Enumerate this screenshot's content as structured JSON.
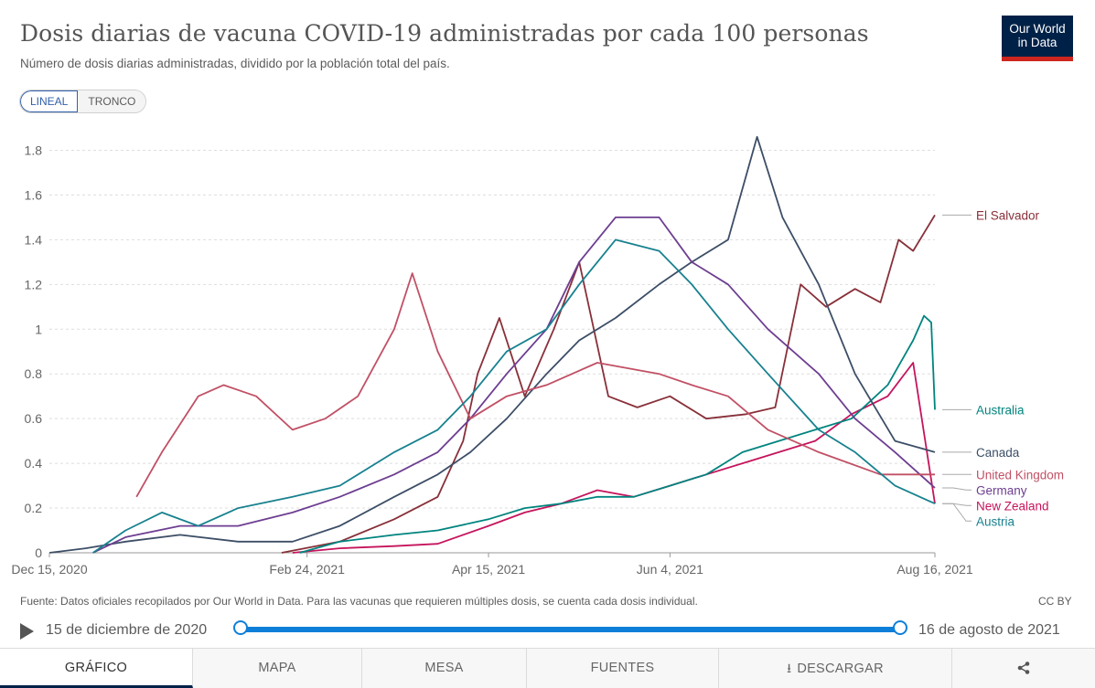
{
  "header": {
    "title": "Dosis diarias de vacuna COVID-19 administradas por cada 100 personas",
    "subtitle": "Número de dosis diarias administradas, dividido por la población total del país.",
    "logo_line1": "Our World",
    "logo_line2": "in Data"
  },
  "controls": {
    "scale_linear": "LINEAL",
    "scale_log": "TRONCO",
    "active_scale": "LINEAL"
  },
  "chart_data": {
    "type": "line",
    "title": "Dosis diarias de vacuna COVID-19 administradas por cada 100 personas",
    "subtitle": "Número de dosis diarias administradas, dividido por la población total del país.",
    "xlabel": "",
    "ylabel": "",
    "x_range": [
      "2020-12-15",
      "2021-08-16"
    ],
    "ylim": [
      0,
      1.9
    ],
    "y_ticks": [
      "0",
      "0.2",
      "0.4",
      "0.6",
      "0.8",
      "1",
      "1.2",
      "1.4",
      "1.6",
      "1.8"
    ],
    "x_ticks": [
      {
        "date": "2020-12-15",
        "label": "Dec 15, 2020"
      },
      {
        "date": "2021-02-24",
        "label": "Feb 24, 2021"
      },
      {
        "date": "2021-04-15",
        "label": "Apr 15, 2021"
      },
      {
        "date": "2021-06-04",
        "label": "Jun 4, 2021"
      },
      {
        "date": "2021-08-16",
        "label": "Aug 16, 2021"
      }
    ],
    "grid": "horizontal dashed",
    "legend_placement": "right, labels at line ends",
    "series": [
      {
        "name": "El Salvador",
        "color": "#883039",
        "points": [
          [
            "2021-02-17",
            0
          ],
          [
            "2021-03-05",
            0.05
          ],
          [
            "2021-03-20",
            0.15
          ],
          [
            "2021-04-01",
            0.25
          ],
          [
            "2021-04-08",
            0.5
          ],
          [
            "2021-04-12",
            0.8
          ],
          [
            "2021-04-18",
            1.05
          ],
          [
            "2021-04-25",
            0.7
          ],
          [
            "2021-05-03",
            1.0
          ],
          [
            "2021-05-10",
            1.3
          ],
          [
            "2021-05-18",
            0.7
          ],
          [
            "2021-05-26",
            0.65
          ],
          [
            "2021-06-04",
            0.7
          ],
          [
            "2021-06-14",
            0.6
          ],
          [
            "2021-06-25",
            0.62
          ],
          [
            "2021-07-03",
            0.65
          ],
          [
            "2021-07-10",
            1.2
          ],
          [
            "2021-07-17",
            1.1
          ],
          [
            "2021-07-25",
            1.18
          ],
          [
            "2021-08-01",
            1.12
          ],
          [
            "2021-08-06",
            1.4
          ],
          [
            "2021-08-10",
            1.35
          ],
          [
            "2021-08-16",
            1.51
          ]
        ],
        "last_value": 1.51
      },
      {
        "name": "New Zealand",
        "color": "#c5145c",
        "points": [
          [
            "2021-02-20",
            0
          ],
          [
            "2021-03-05",
            0.02
          ],
          [
            "2021-03-20",
            0.03
          ],
          [
            "2021-04-01",
            0.04
          ],
          [
            "2021-04-15",
            0.12
          ],
          [
            "2021-04-25",
            0.18
          ],
          [
            "2021-05-05",
            0.22
          ],
          [
            "2021-05-15",
            0.28
          ],
          [
            "2021-05-25",
            0.25
          ],
          [
            "2021-06-04",
            0.3
          ],
          [
            "2021-06-14",
            0.35
          ],
          [
            "2021-06-24",
            0.4
          ],
          [
            "2021-07-04",
            0.45
          ],
          [
            "2021-07-14",
            0.5
          ],
          [
            "2021-07-24",
            0.62
          ],
          [
            "2021-08-03",
            0.7
          ],
          [
            "2021-08-10",
            0.85
          ],
          [
            "2021-08-16",
            0.22
          ]
        ],
        "last_value": 0.22
      },
      {
        "name": "Australia",
        "color": "#00847e",
        "points": [
          [
            "2021-02-22",
            0
          ],
          [
            "2021-03-05",
            0.05
          ],
          [
            "2021-03-20",
            0.08
          ],
          [
            "2021-04-01",
            0.1
          ],
          [
            "2021-04-15",
            0.15
          ],
          [
            "2021-04-25",
            0.2
          ],
          [
            "2021-05-05",
            0.22
          ],
          [
            "2021-05-15",
            0.25
          ],
          [
            "2021-05-25",
            0.25
          ],
          [
            "2021-06-04",
            0.3
          ],
          [
            "2021-06-14",
            0.35
          ],
          [
            "2021-06-24",
            0.45
          ],
          [
            "2021-07-04",
            0.5
          ],
          [
            "2021-07-14",
            0.55
          ],
          [
            "2021-07-24",
            0.6
          ],
          [
            "2021-08-03",
            0.75
          ],
          [
            "2021-08-10",
            0.95
          ],
          [
            "2021-08-13",
            1.06
          ],
          [
            "2021-08-15",
            1.03
          ],
          [
            "2021-08-16",
            0.64
          ]
        ],
        "last_value": 0.64
      },
      {
        "name": "Canada",
        "color": "#3c4e66",
        "points": [
          [
            "2020-12-15",
            0
          ],
          [
            "2020-12-25",
            0.02
          ],
          [
            "2021-01-05",
            0.05
          ],
          [
            "2021-01-20",
            0.08
          ],
          [
            "2021-02-05",
            0.05
          ],
          [
            "2021-02-20",
            0.05
          ],
          [
            "2021-03-05",
            0.12
          ],
          [
            "2021-03-20",
            0.25
          ],
          [
            "2021-04-01",
            0.35
          ],
          [
            "2021-04-10",
            0.45
          ],
          [
            "2021-04-20",
            0.6
          ],
          [
            "2021-05-01",
            0.8
          ],
          [
            "2021-05-10",
            0.95
          ],
          [
            "2021-05-20",
            1.05
          ],
          [
            "2021-06-01",
            1.2
          ],
          [
            "2021-06-10",
            1.3
          ],
          [
            "2021-06-20",
            1.4
          ],
          [
            "2021-06-28",
            1.86
          ],
          [
            "2021-07-05",
            1.5
          ],
          [
            "2021-07-15",
            1.2
          ],
          [
            "2021-07-25",
            0.8
          ],
          [
            "2021-08-05",
            0.5
          ],
          [
            "2021-08-16",
            0.45
          ]
        ],
        "last_value": 0.45
      },
      {
        "name": "Germany",
        "color": "#6d3e91",
        "points": [
          [
            "2020-12-27",
            0
          ],
          [
            "2021-01-05",
            0.07
          ],
          [
            "2021-01-20",
            0.12
          ],
          [
            "2021-02-05",
            0.12
          ],
          [
            "2021-02-20",
            0.18
          ],
          [
            "2021-03-05",
            0.25
          ],
          [
            "2021-03-20",
            0.35
          ],
          [
            "2021-04-01",
            0.45
          ],
          [
            "2021-04-10",
            0.6
          ],
          [
            "2021-04-20",
            0.8
          ],
          [
            "2021-05-01",
            1.0
          ],
          [
            "2021-05-10",
            1.3
          ],
          [
            "2021-05-20",
            1.5
          ],
          [
            "2021-06-01",
            1.5
          ],
          [
            "2021-06-10",
            1.3
          ],
          [
            "2021-06-20",
            1.2
          ],
          [
            "2021-07-01",
            1.0
          ],
          [
            "2021-07-15",
            0.8
          ],
          [
            "2021-07-25",
            0.6
          ],
          [
            "2021-08-05",
            0.45
          ],
          [
            "2021-08-16",
            0.29
          ]
        ],
        "last_value": 0.29
      },
      {
        "name": "United Kingdom",
        "color": "#c15065",
        "points": [
          [
            "2021-01-08",
            0.25
          ],
          [
            "2021-01-15",
            0.45
          ],
          [
            "2021-01-25",
            0.7
          ],
          [
            "2021-02-01",
            0.75
          ],
          [
            "2021-02-10",
            0.7
          ],
          [
            "2021-02-20",
            0.55
          ],
          [
            "2021-03-01",
            0.6
          ],
          [
            "2021-03-10",
            0.7
          ],
          [
            "2021-03-20",
            1.0
          ],
          [
            "2021-03-25",
            1.25
          ],
          [
            "2021-04-01",
            0.9
          ],
          [
            "2021-04-10",
            0.6
          ],
          [
            "2021-04-20",
            0.7
          ],
          [
            "2021-05-01",
            0.75
          ],
          [
            "2021-05-15",
            0.85
          ],
          [
            "2021-06-01",
            0.8
          ],
          [
            "2021-06-10",
            0.75
          ],
          [
            "2021-06-20",
            0.7
          ],
          [
            "2021-07-01",
            0.55
          ],
          [
            "2021-07-15",
            0.45
          ],
          [
            "2021-08-01",
            0.35
          ],
          [
            "2021-08-16",
            0.35
          ]
        ],
        "last_value": 0.35
      },
      {
        "name": "Austria",
        "color": "#18818f",
        "points": [
          [
            "2020-12-27",
            0
          ],
          [
            "2021-01-05",
            0.1
          ],
          [
            "2021-01-15",
            0.18
          ],
          [
            "2021-01-25",
            0.12
          ],
          [
            "2021-02-05",
            0.2
          ],
          [
            "2021-02-20",
            0.25
          ],
          [
            "2021-03-05",
            0.3
          ],
          [
            "2021-03-20",
            0.45
          ],
          [
            "2021-04-01",
            0.55
          ],
          [
            "2021-04-10",
            0.7
          ],
          [
            "2021-04-20",
            0.9
          ],
          [
            "2021-05-01",
            1.0
          ],
          [
            "2021-05-10",
            1.2
          ],
          [
            "2021-05-20",
            1.4
          ],
          [
            "2021-06-01",
            1.35
          ],
          [
            "2021-06-10",
            1.2
          ],
          [
            "2021-06-20",
            1.0
          ],
          [
            "2021-07-01",
            0.8
          ],
          [
            "2021-07-15",
            0.55
          ],
          [
            "2021-07-25",
            0.45
          ],
          [
            "2021-08-05",
            0.3
          ],
          [
            "2021-08-16",
            0.22
          ]
        ],
        "last_value": 0.22
      }
    ]
  },
  "footer": {
    "source": "Fuente: Datos oficiales recopilados por Our World in Data. Para las vacunas que requieren múltiples dosis, se cuenta cada dosis individual.",
    "license": "CC BY"
  },
  "timeline": {
    "start_label": "15 de diciembre de 2020",
    "end_label": "16 de agosto de 2021"
  },
  "tabs": [
    {
      "label": "GRÁFICO",
      "active": true
    },
    {
      "label": "MAPA",
      "active": false
    },
    {
      "label": "MESA",
      "active": false
    },
    {
      "label": "FUENTES",
      "active": false
    },
    {
      "label": "DESCARGAR",
      "active": false
    },
    {
      "label": "",
      "active": false
    }
  ]
}
